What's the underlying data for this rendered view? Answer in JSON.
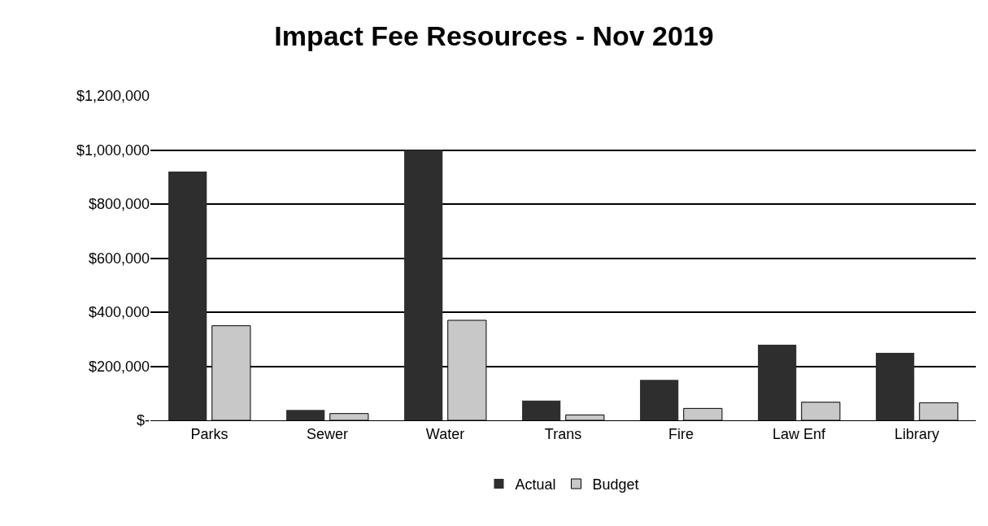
{
  "chart_data": {
    "type": "bar",
    "title": "Impact Fee Resources - Nov 2019",
    "categories": [
      "Parks",
      "Sewer",
      "Water",
      "Trans",
      "Fire",
      "Law Enf",
      "Library"
    ],
    "series": [
      {
        "name": "Actual",
        "color": "#2e2e2e",
        "values": [
          920000,
          38000,
          1000000,
          73000,
          150000,
          280000,
          250000
        ]
      },
      {
        "name": "Budget",
        "color": "#c8c8c8",
        "values": [
          350000,
          25000,
          370000,
          20000,
          44000,
          67000,
          65000
        ]
      }
    ],
    "ylim": [
      0,
      1200000
    ],
    "yticks": [
      {
        "value": 0,
        "label": "$-"
      },
      {
        "value": 200000,
        "label": "$200,000"
      },
      {
        "value": 400000,
        "label": "$400,000"
      },
      {
        "value": 600000,
        "label": "$600,000"
      },
      {
        "value": 800000,
        "label": "$800,000"
      },
      {
        "value": 1000000,
        "label": "$1,000,000"
      },
      {
        "value": 1200000,
        "label": "$1,200,000"
      }
    ],
    "grid": "y",
    "legend": "bottom"
  }
}
